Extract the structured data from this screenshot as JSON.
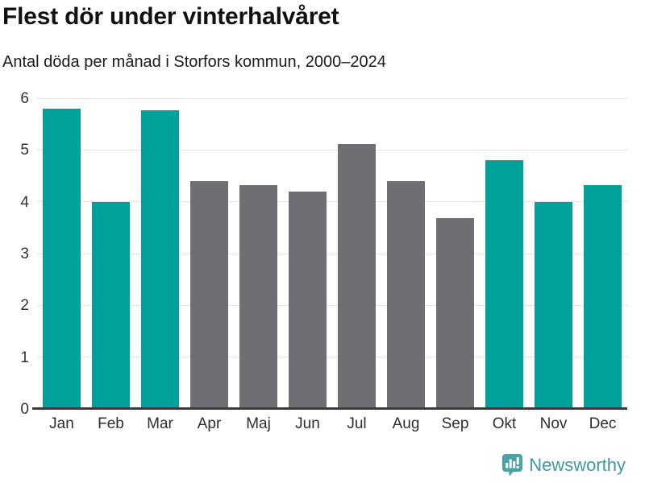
{
  "header": {
    "title": "Flest dör under vinterhalvåret",
    "subtitle": "Antal döda per månad i Storfors kommun, 2000–2024"
  },
  "colors": {
    "highlight": "#00a19a",
    "muted": "#6e6e73",
    "gridline": "#e4e4e4",
    "axis_line": "#3c3c3c",
    "label_text": "#2e2e2e",
    "brand": "#3e9aa0"
  },
  "chart_data": {
    "type": "bar",
    "title": "Flest dör under vinterhalvåret",
    "subtitle": "Antal döda per månad i Storfors kommun, 2000–2024",
    "categories": [
      "Jan",
      "Feb",
      "Mar",
      "Apr",
      "Maj",
      "Jun",
      "Jul",
      "Aug",
      "Sep",
      "Okt",
      "Nov",
      "Dec"
    ],
    "values": [
      5.8,
      4.0,
      5.76,
      4.4,
      4.32,
      4.2,
      5.12,
      4.4,
      3.68,
      4.8,
      4.0,
      4.32
    ],
    "bar_colors": [
      "highlight",
      "highlight",
      "highlight",
      "muted",
      "muted",
      "muted",
      "muted",
      "muted",
      "muted",
      "highlight",
      "highlight",
      "highlight"
    ],
    "xlabel": "",
    "ylabel": "",
    "ylim": [
      0,
      6
    ],
    "yticks": [
      0,
      1,
      2,
      3,
      4,
      5,
      6
    ],
    "grid": true,
    "legend": false
  },
  "footer": {
    "brand": "Newsworthy",
    "logo_icon": "newsworthy-speech-bubble-chart-icon"
  }
}
